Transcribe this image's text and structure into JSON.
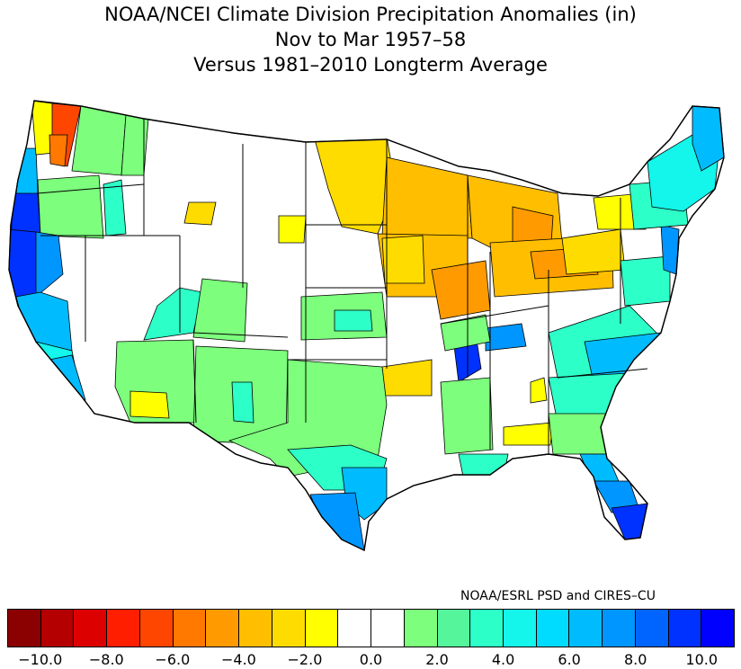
{
  "title": {
    "line1": "NOAA/NCEI Climate Division Precipitation Anomalies (in)",
    "line2": "Nov to Mar 1957–58",
    "line3": "Versus 1981–2010 Longterm Average"
  },
  "credit": "NOAA/ESRL PSD and CIRES–CU",
  "colorbar": {
    "colors": [
      "#8b0000",
      "#b40000",
      "#dc0000",
      "#ff1e00",
      "#ff4600",
      "#ff7800",
      "#ff9b00",
      "#ffbe00",
      "#ffdc00",
      "#ffff00",
      "#ffffff",
      "#ffffff",
      "#7dff7d",
      "#55f59b",
      "#2dffc8",
      "#14f5eb",
      "#00dcff",
      "#00bcff",
      "#0096ff",
      "#0064ff",
      "#0032ff",
      "#0000ff"
    ],
    "tick_labels": [
      "−10.0",
      "−8.0",
      "−6.0",
      "−4.0",
      "−2.0",
      "0.0",
      "2.0",
      "4.0",
      "6.0",
      "8.0",
      "10.0"
    ]
  },
  "map_fills": {
    "dark_blue": "#0032ff",
    "blue": "#0064ff",
    "mid_blue": "#0096ff",
    "sky_blue": "#00bcff",
    "cyan": "#14f5eb",
    "aqua": "#2dffc8",
    "green": "#7dff7d",
    "yellow": "#ffff00",
    "gold": "#ffdc00",
    "orange_light": "#ffbe00",
    "orange": "#ff9b00",
    "dark_orange": "#ff7800",
    "red_orange": "#ff4600"
  }
}
